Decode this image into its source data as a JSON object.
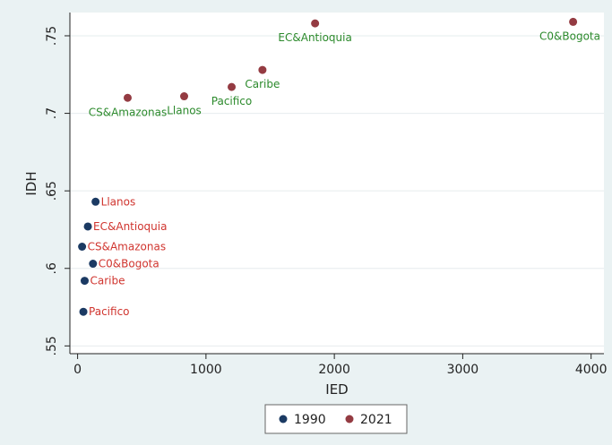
{
  "chart_data": {
    "type": "scatter",
    "xlabel": "IED",
    "ylabel": "IDH",
    "xlim": [
      -60,
      4100
    ],
    "ylim": [
      0.545,
      0.765
    ],
    "xticks": [
      {
        "value": 0,
        "label": "0"
      },
      {
        "value": 1000,
        "label": "1000"
      },
      {
        "value": 2000,
        "label": "2000"
      },
      {
        "value": 3000,
        "label": "3000"
      },
      {
        "value": 4000,
        "label": "4000"
      }
    ],
    "yticks": [
      {
        "value": 0.55,
        "label": ".55"
      },
      {
        "value": 0.6,
        "label": ".6"
      },
      {
        "value": 0.65,
        "label": ".65"
      },
      {
        "value": 0.7,
        "label": ".7"
      },
      {
        "value": 0.75,
        "label": ".75"
      }
    ],
    "grid": true,
    "legend_position": "bottom",
    "series": [
      {
        "name": "1990",
        "color": "#1b3a63",
        "label_color": "#d0352f",
        "points": [
          {
            "label": "Llanos",
            "x": 140,
            "y": 0.643
          },
          {
            "label": "EC&Antioquia",
            "x": 80,
            "y": 0.627
          },
          {
            "label": "CS&Amazonas",
            "x": 35,
            "y": 0.614
          },
          {
            "label": "C0&Bogota",
            "x": 120,
            "y": 0.603
          },
          {
            "label": "Caribe",
            "x": 55,
            "y": 0.592
          },
          {
            "label": "Pacifico",
            "x": 45,
            "y": 0.572
          }
        ]
      },
      {
        "name": "2021",
        "color": "#943b42",
        "label_color": "#2c8a2c",
        "points": [
          {
            "label": "C0&Bogota",
            "x": 3860,
            "y": 0.759
          },
          {
            "label": "EC&Antioquia",
            "x": 1850,
            "y": 0.758
          },
          {
            "label": "Caribe",
            "x": 1440,
            "y": 0.728
          },
          {
            "label": "Pacifico",
            "x": 1200,
            "y": 0.717
          },
          {
            "label": "Llanos",
            "x": 830,
            "y": 0.711
          },
          {
            "label": "CS&Amazonas",
            "x": 390,
            "y": 0.71
          }
        ]
      }
    ]
  }
}
